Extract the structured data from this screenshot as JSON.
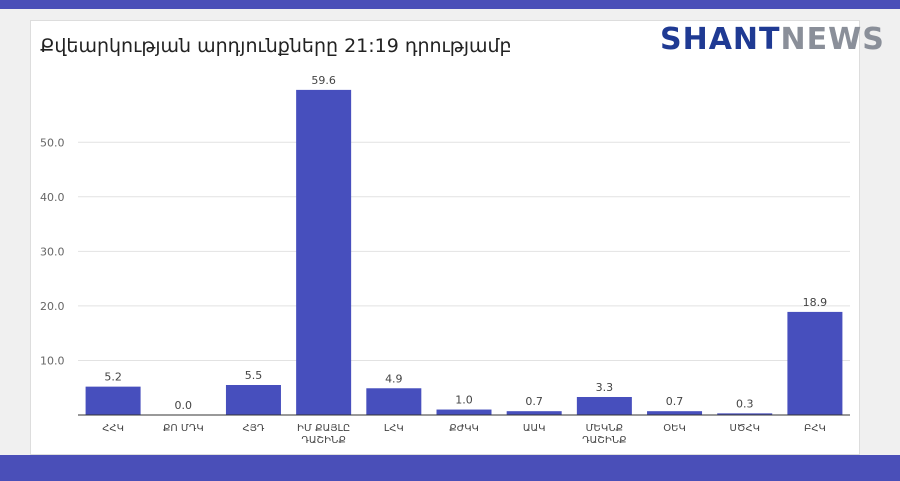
{
  "header": {
    "title": "Քվեարկության արդյունքները 21:19 դրությամբ",
    "logo_part1": "SHANT",
    "logo_part2": "NEWS"
  },
  "colors": {
    "bar": "#474fbd",
    "frame": "#4a4fb8",
    "logo_primary": "#1f3a93",
    "logo_secondary": "#8a8f99"
  },
  "chart_data": {
    "type": "bar",
    "title": "Քվեարկության արդյունքները 21:19 դրությամբ",
    "categories": [
      [
        "ՀՀԿ"
      ],
      [
        "ՔՈ ՄԴԿ"
      ],
      [
        "ՀՅԴ"
      ],
      [
        "ԻՄ ՔԱՅԼԸ",
        "ԴԱՇԻՆՔ"
      ],
      [
        "ԼՀԿ"
      ],
      [
        "ՔԺԿԿ"
      ],
      [
        "ԱԱԿ"
      ],
      [
        "ՄԵԿՆՔ",
        "ԴԱՇԻՆՔ"
      ],
      [
        "ՕԵԿ"
      ],
      [
        "ՍԾՀԿ"
      ],
      [
        "ԲՀԿ"
      ]
    ],
    "values": [
      5.2,
      0.0,
      5.5,
      59.6,
      4.9,
      1.0,
      0.7,
      3.3,
      0.7,
      0.3,
      18.9
    ],
    "value_labels": [
      "5.2",
      "0.0",
      "5.5",
      "59.6",
      "4.9",
      "1.0",
      "0.7",
      "3.3",
      "0.7",
      "0.3",
      "18.9"
    ],
    "yticks": [
      10,
      20,
      30,
      40,
      50
    ],
    "ytick_labels": [
      "10.0",
      "20.0",
      "30.0",
      "40.0",
      "50.0"
    ],
    "ylim": [
      0,
      60
    ],
    "grid": true,
    "legend": "none",
    "xlabel": "",
    "ylabel": ""
  }
}
